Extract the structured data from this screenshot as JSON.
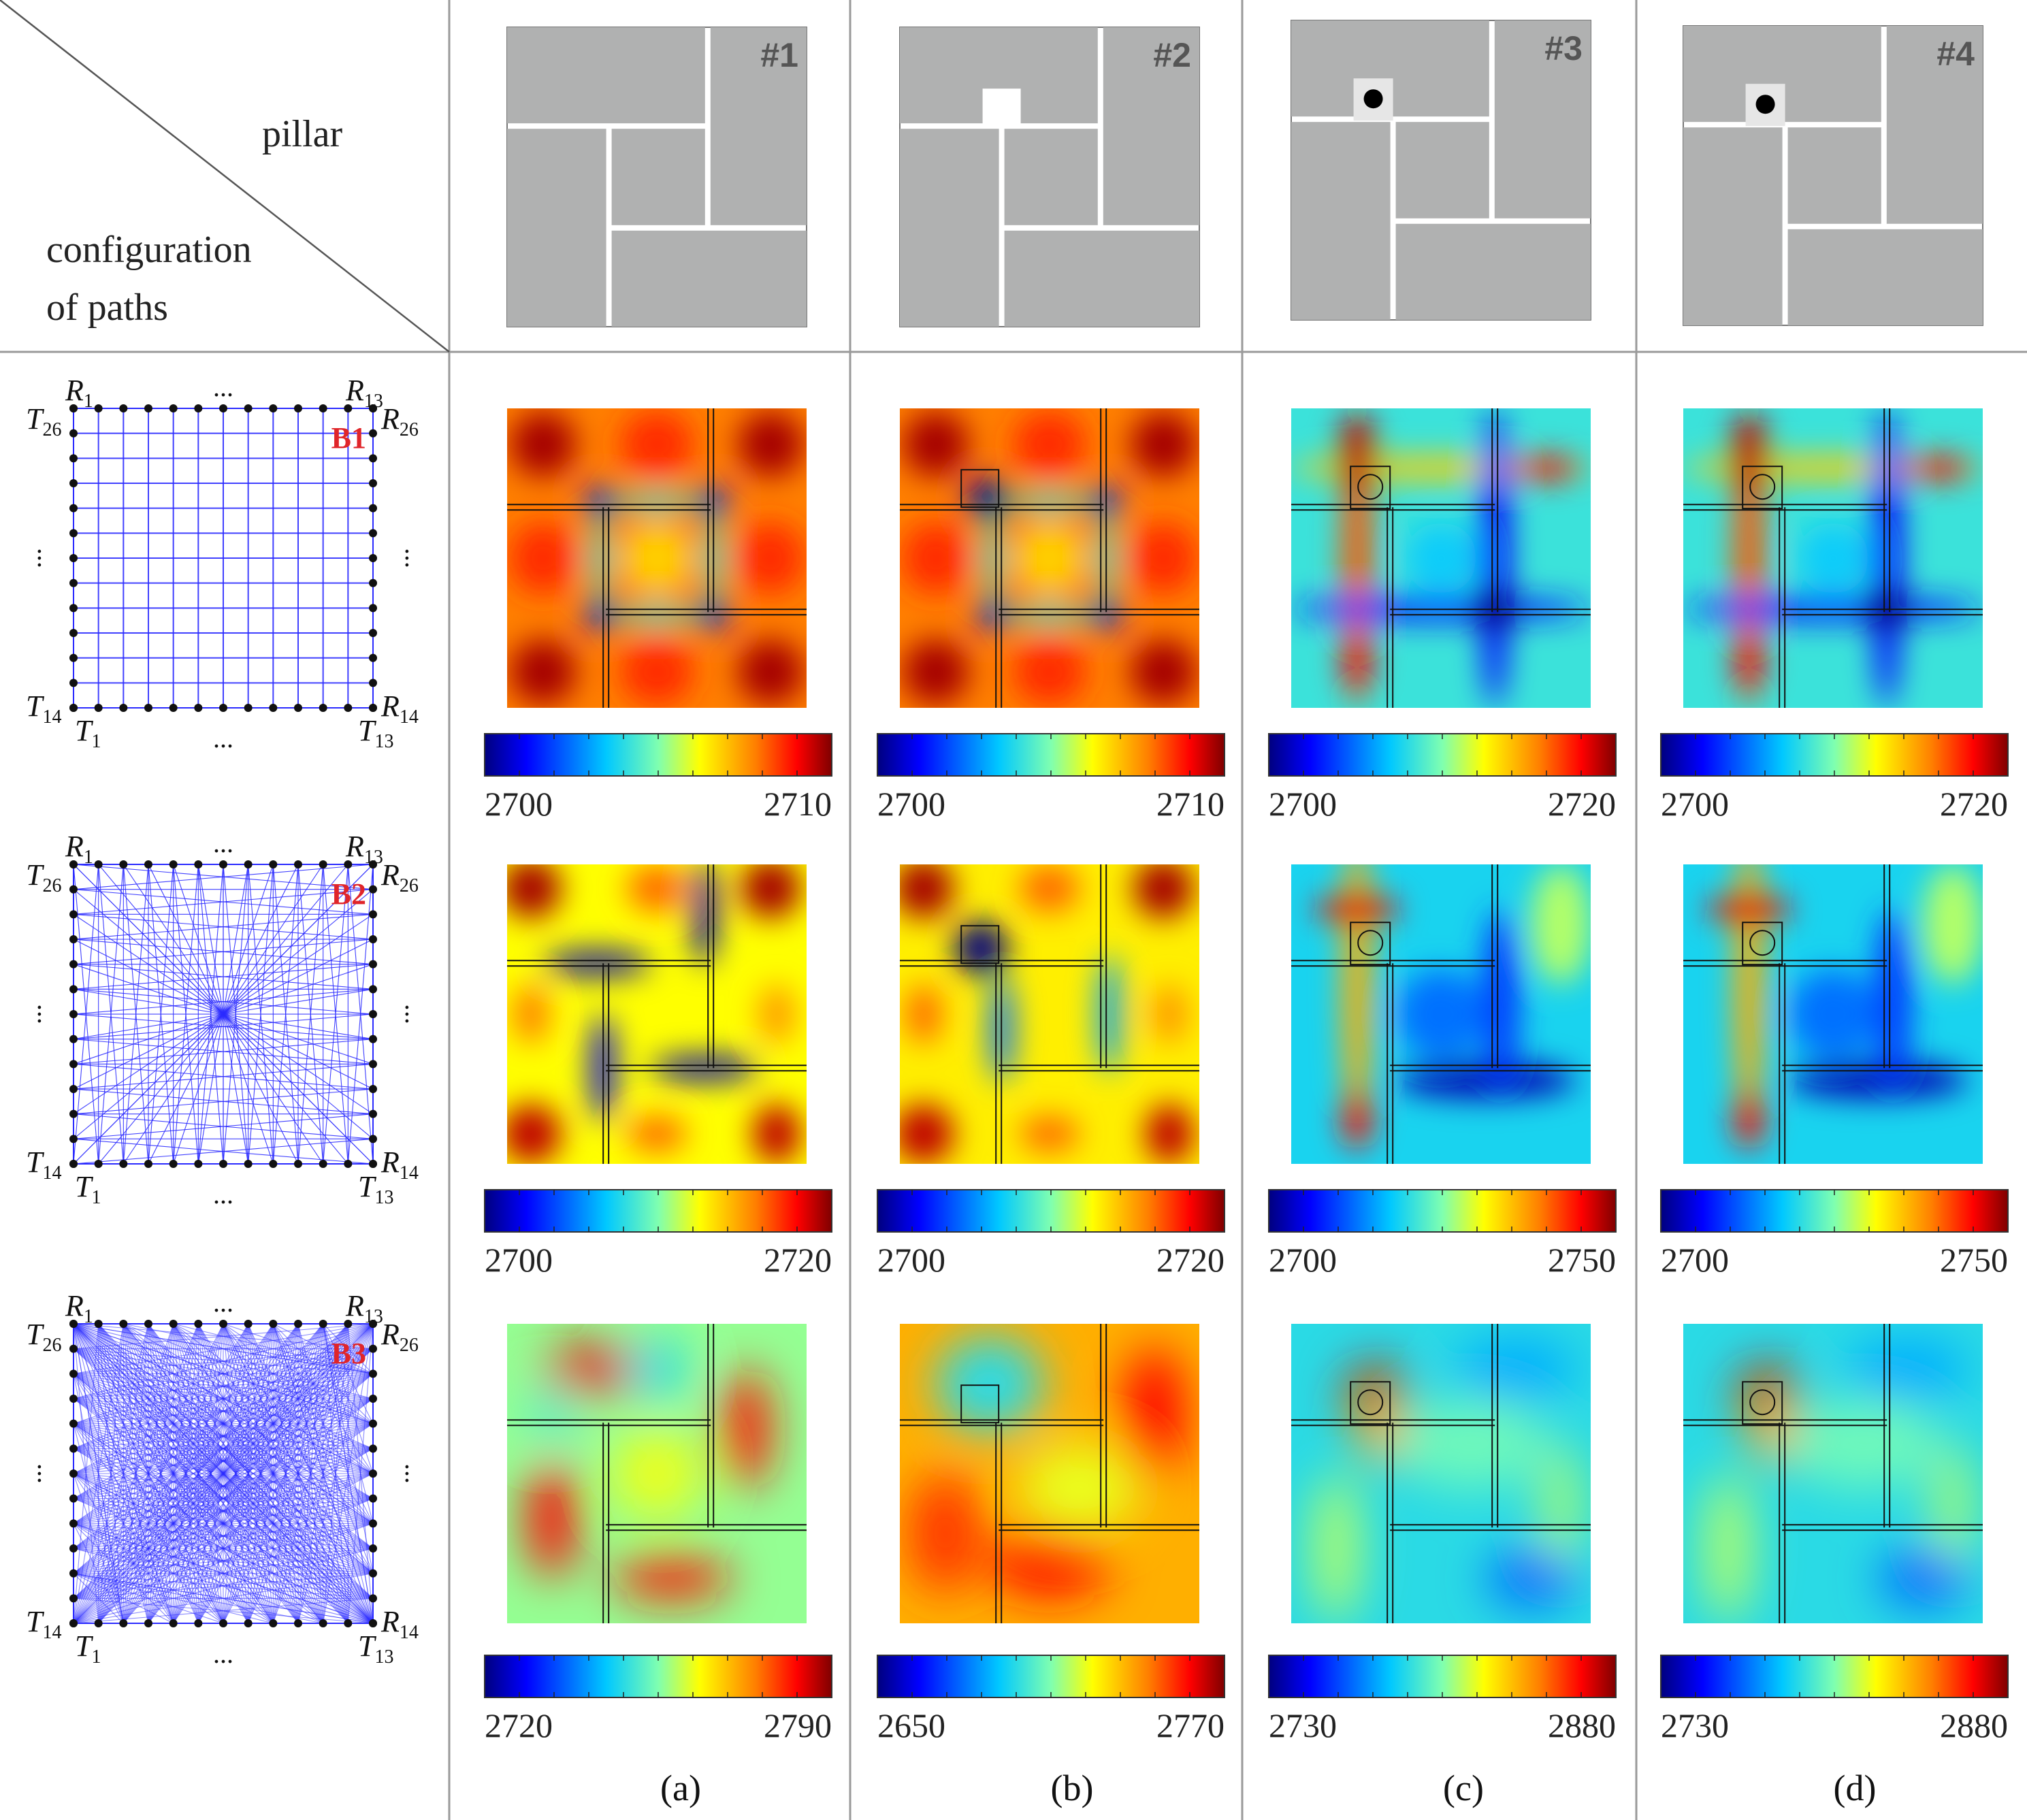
{
  "header": {
    "pillar_label": "pillar",
    "config_label_line1": "configuration",
    "config_label_line2": "of paths"
  },
  "pillars": [
    {
      "id": "#1",
      "type": "none"
    },
    {
      "id": "#2",
      "type": "empty-slot"
    },
    {
      "id": "#3",
      "type": "solid-dot"
    },
    {
      "id": "#4",
      "type": "solid-dot"
    }
  ],
  "configs": [
    {
      "id": "B1",
      "labels": {
        "r1": "R",
        "r1_sub": "1",
        "r13": "R",
        "r13_sub": "13",
        "t26": "T",
        "t26_sub": "26",
        "r26": "R",
        "r26_sub": "26",
        "t14": "T",
        "t14_sub": "14",
        "r14": "R",
        "r14_sub": "14",
        "t1": "T",
        "t1_sub": "1",
        "t13": "T",
        "t13_sub": "13",
        "ellipsis": "..."
      },
      "line_colour": "#2b2bff"
    },
    {
      "id": "B2",
      "labels": {
        "r1": "R",
        "r1_sub": "1",
        "r13": "R",
        "r13_sub": "13",
        "t26": "T",
        "t26_sub": "26",
        "r26": "R",
        "r26_sub": "26",
        "t14": "T",
        "t14_sub": "14",
        "r14": "R",
        "r14_sub": "14",
        "t1": "T",
        "t1_sub": "1",
        "t13": "T",
        "t13_sub": "13",
        "ellipsis": "..."
      },
      "line_colour": "#2b2bff"
    },
    {
      "id": "B3",
      "labels": {
        "r1": "R",
        "r1_sub": "1",
        "r13": "R",
        "r13_sub": "13",
        "t26": "T",
        "t26_sub": "26",
        "r26": "R",
        "r26_sub": "26",
        "t14": "T",
        "t14_sub": "14",
        "r14": "R",
        "r14_sub": "14",
        "t1": "T",
        "t1_sub": "1",
        "t13": "T",
        "t13_sub": "13",
        "ellipsis": "..."
      },
      "line_colour": "#2b2bff"
    }
  ],
  "colorbars": [
    [
      {
        "min": "2700",
        "max": "2710"
      },
      {
        "min": "2700",
        "max": "2710"
      },
      {
        "min": "2700",
        "max": "2720"
      },
      {
        "min": "2700",
        "max": "2720"
      }
    ],
    [
      {
        "min": "2700",
        "max": "2720"
      },
      {
        "min": "2700",
        "max": "2720"
      },
      {
        "min": "2700",
        "max": "2750"
      },
      {
        "min": "2700",
        "max": "2750"
      }
    ],
    [
      {
        "min": "2720",
        "max": "2790"
      },
      {
        "min": "2650",
        "max": "2770"
      },
      {
        "min": "2730",
        "max": "2880"
      },
      {
        "min": "2730",
        "max": "2880"
      }
    ]
  ],
  "column_labels": [
    "(a)",
    "(b)",
    "(c)",
    "(d)"
  ],
  "colors": {
    "block_gray": "#b0b1b1",
    "config_id_red": "#e0252a",
    "path_blue": "#2b2bff",
    "divider": "#9a9a9a",
    "jet": [
      "#00007f",
      "#0000ff",
      "#007fff",
      "#00ffff",
      "#7fff7f",
      "#ffff00",
      "#ff7f00",
      "#ff0000",
      "#7f0000"
    ]
  }
}
